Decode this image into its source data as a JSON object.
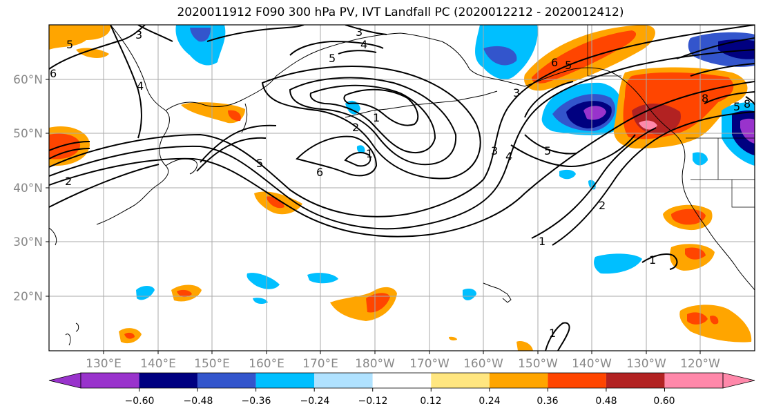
{
  "title": "2020011912 F090 300 hPa PV, IVT Landfall PC (2020012212 - 2020012412)",
  "map": {
    "lon_labels": [
      "130°E",
      "140°E",
      "150°E",
      "160°E",
      "170°E",
      "180°W",
      "170°W",
      "160°W",
      "150°W",
      "140°W",
      "130°W",
      "120°W"
    ],
    "lat_labels": [
      "60°N",
      "50°N",
      "40°N",
      "30°N",
      "20°N"
    ],
    "contour_labels": [
      "5",
      "3",
      "4",
      "3",
      "5",
      "4",
      "1",
      "3",
      "5",
      "6",
      "2",
      "5",
      "2",
      "1",
      "3",
      "4",
      "5",
      "2",
      "6",
      "1",
      "1",
      "1",
      "6",
      "5",
      "8",
      "8"
    ]
  },
  "colorbar": {
    "tick_labels": [
      "−0.60",
      "−0.48",
      "−0.36",
      "−0.24",
      "−0.12",
      "0.12",
      "0.24",
      "0.36",
      "0.48",
      "0.60"
    ],
    "colors": [
      "#9933cc",
      "#000080",
      "#3355cc",
      "#00bfff",
      "#b0e2ff",
      "#ffffff",
      "#ffe680",
      "#ffa500",
      "#ff4500",
      "#b22222",
      "#ff88aa"
    ]
  }
}
